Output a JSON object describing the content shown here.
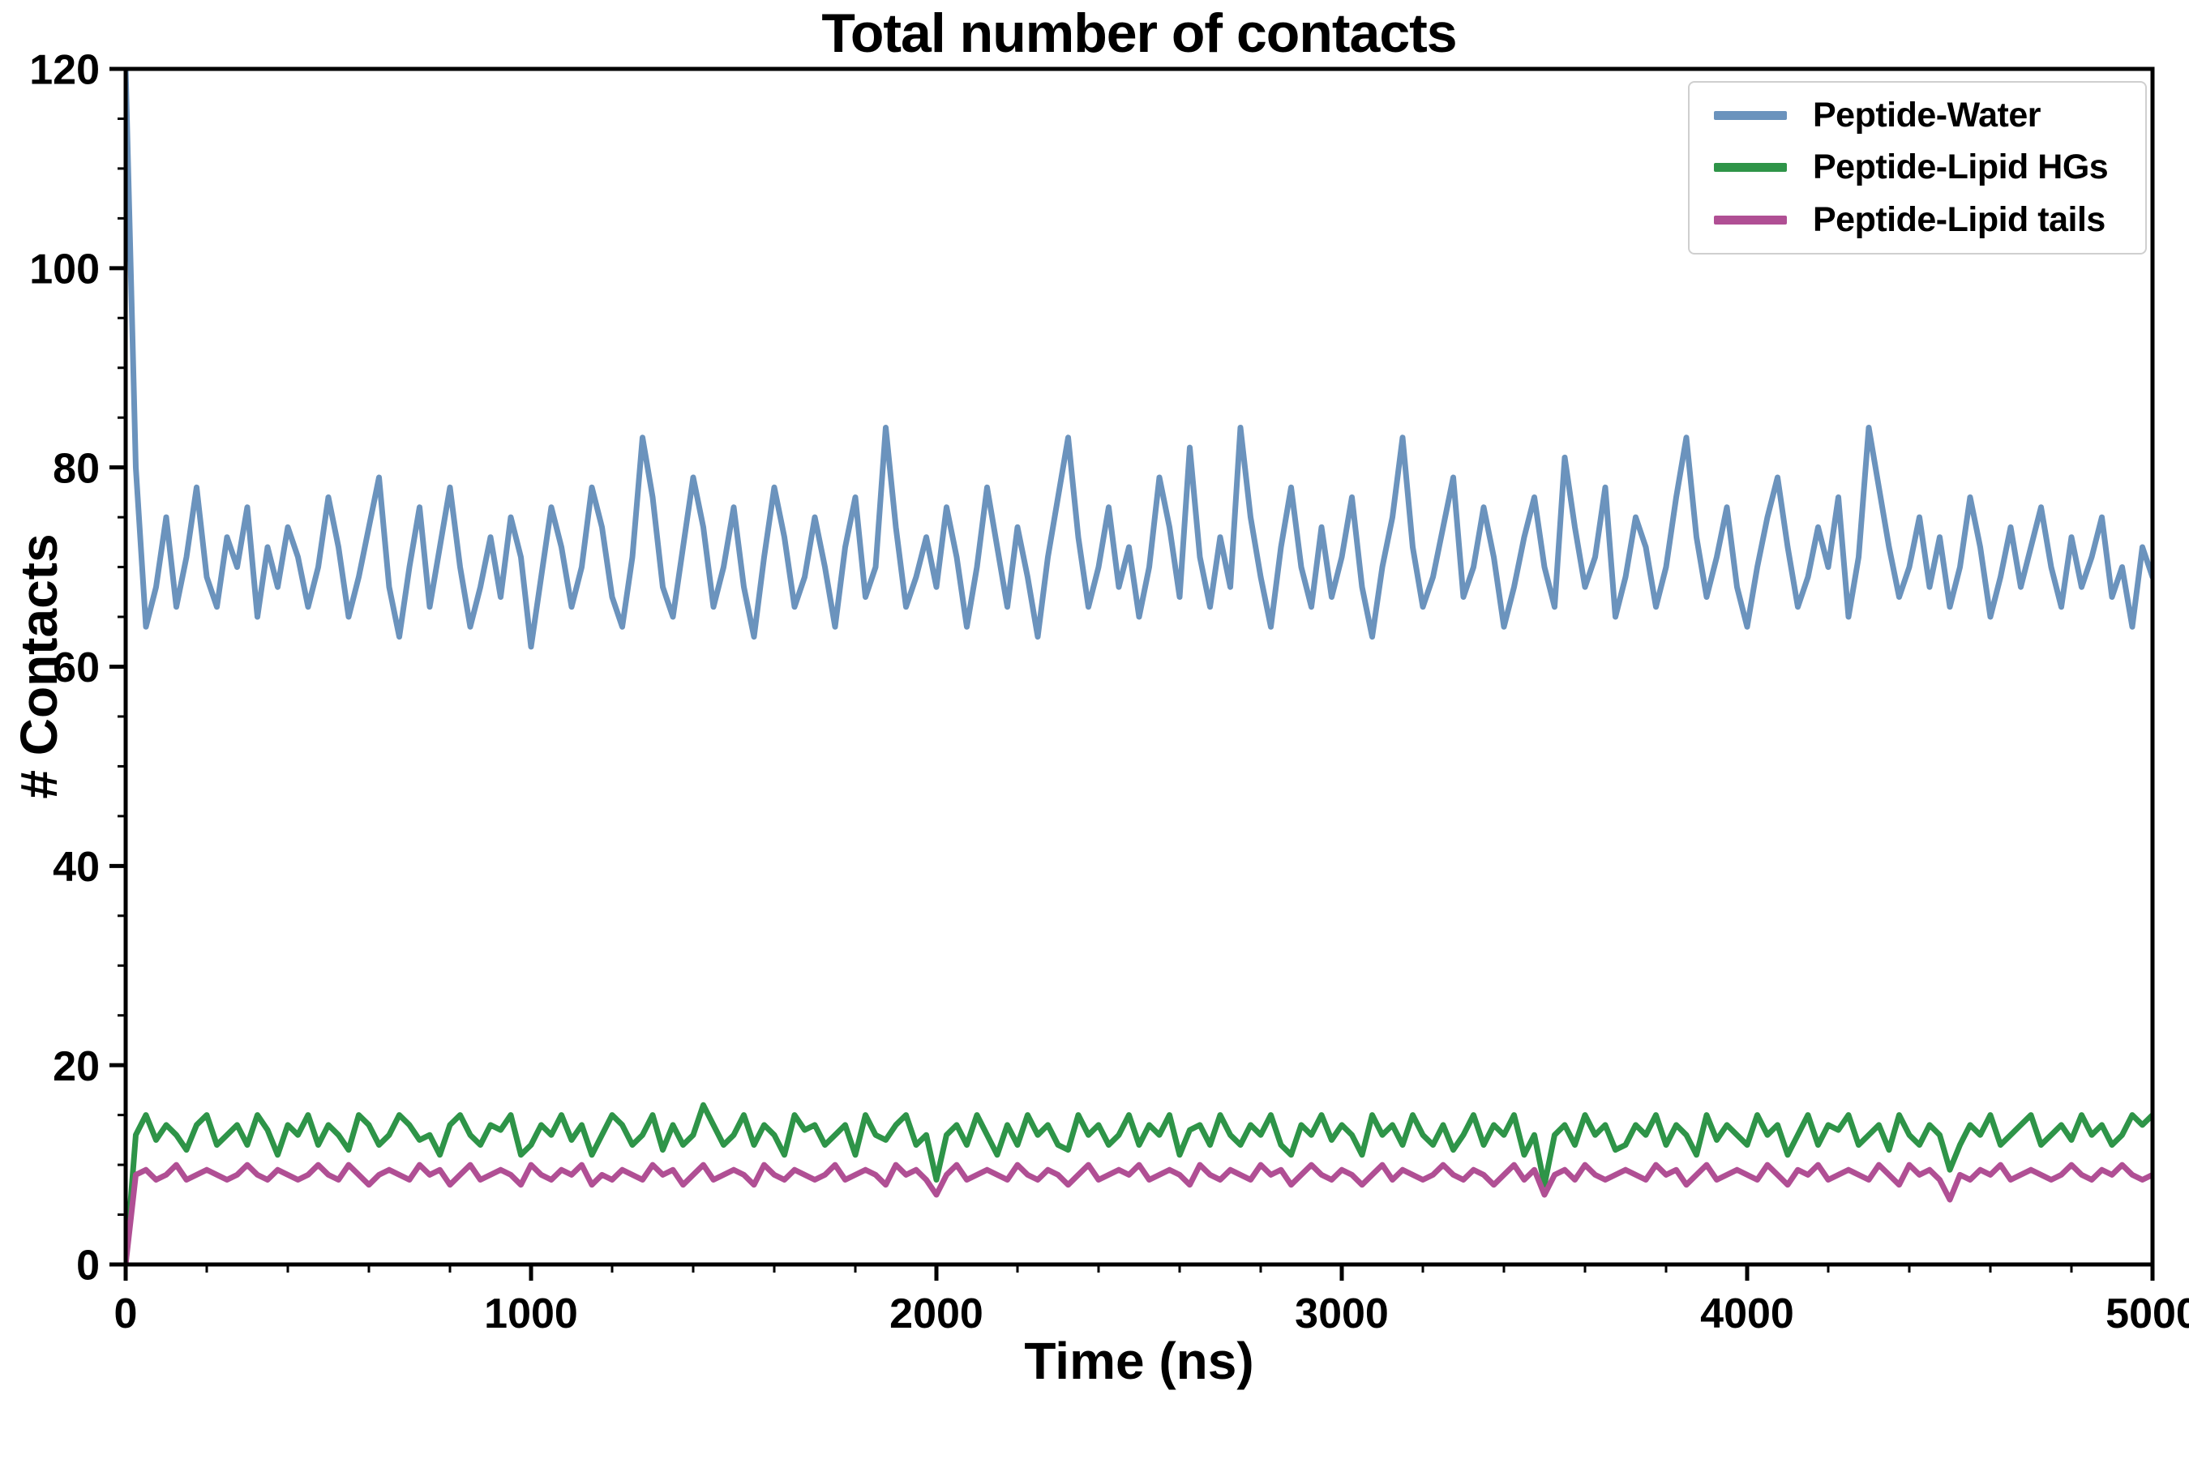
{
  "chart_data": {
    "type": "line",
    "title": "Total number of contacts",
    "xlabel": "Time (ns)",
    "ylabel": "# Contacts",
    "xlim": [
      0,
      5000
    ],
    "ylim": [
      0,
      120
    ],
    "xticks": [
      0,
      1000,
      2000,
      3000,
      4000,
      5000
    ],
    "yticks": [
      0,
      20,
      40,
      60,
      80,
      100,
      120
    ],
    "x_minor_step": 200,
    "y_minor_step": 5,
    "grid": false,
    "legend_position": "upper right",
    "x_start": 0,
    "x_step": 25,
    "series": [
      {
        "name": "Peptide-Water",
        "color": "#6b93bd",
        "values": [
          120,
          80,
          64,
          68,
          75,
          66,
          71,
          78,
          69,
          66,
          73,
          70,
          76,
          65,
          72,
          68,
          74,
          71,
          66,
          70,
          77,
          72,
          65,
          69,
          74,
          79,
          68,
          63,
          70,
          76,
          66,
          72,
          78,
          70,
          64,
          68,
          73,
          67,
          75,
          71,
          62,
          69,
          76,
          72,
          66,
          70,
          78,
          74,
          67,
          64,
          71,
          83,
          77,
          68,
          65,
          72,
          79,
          74,
          66,
          70,
          76,
          68,
          63,
          71,
          78,
          73,
          66,
          69,
          75,
          70,
          64,
          72,
          77,
          67,
          70,
          84,
          74,
          66,
          69,
          73,
          68,
          76,
          71,
          64,
          70,
          78,
          72,
          66,
          74,
          69,
          63,
          71,
          77,
          83,
          73,
          66,
          70,
          76,
          68,
          72,
          65,
          70,
          79,
          74,
          67,
          82,
          71,
          66,
          73,
          68,
          84,
          75,
          69,
          64,
          72,
          78,
          70,
          66,
          74,
          67,
          71,
          77,
          68,
          63,
          70,
          75,
          83,
          72,
          66,
          69,
          74,
          79,
          67,
          70,
          76,
          71,
          64,
          68,
          73,
          77,
          70,
          66,
          81,
          74,
          68,
          71,
          78,
          65,
          69,
          75,
          72,
          66,
          70,
          77,
          83,
          73,
          67,
          71,
          76,
          68,
          64,
          70,
          75,
          79,
          72,
          66,
          69,
          74,
          70,
          77,
          65,
          71,
          84,
          78,
          72,
          67,
          70,
          75,
          68,
          73,
          66,
          70,
          77,
          72,
          65,
          69,
          74,
          68,
          72,
          76,
          70,
          66,
          73,
          68,
          71,
          75,
          67,
          70,
          64,
          72,
          69
        ]
      },
      {
        "name": "Peptide-Lipid HGs",
        "color": "#2e9448",
        "values": [
          0,
          13,
          15,
          12.5,
          14,
          13,
          11.5,
          14,
          15,
          12,
          13,
          14,
          12,
          15,
          13.5,
          11,
          14,
          13,
          15,
          12,
          14,
          13,
          11.5,
          15,
          14,
          12,
          13,
          15,
          14,
          12.5,
          13,
          11,
          14,
          15,
          13,
          12,
          14,
          13.5,
          15,
          11,
          12,
          14,
          13,
          15,
          12.5,
          14,
          11,
          13,
          15,
          14,
          12,
          13,
          15,
          11.5,
          14,
          12,
          13,
          16,
          14,
          12,
          13,
          15,
          12,
          14,
          13,
          11,
          15,
          13.5,
          14,
          12,
          13,
          14,
          11,
          15,
          13,
          12.5,
          14,
          15,
          12,
          13,
          8.5,
          13,
          14,
          12,
          15,
          13,
          11,
          14,
          12,
          15,
          13,
          14,
          12,
          11.5,
          15,
          13,
          14,
          12,
          13,
          15,
          12,
          14,
          13,
          15,
          11,
          13.5,
          14,
          12,
          15,
          13,
          12,
          14,
          13,
          15,
          12,
          11,
          14,
          13,
          15,
          12.5,
          14,
          13,
          11,
          15,
          13,
          14,
          12,
          15,
          13,
          12,
          14,
          11.5,
          13,
          15,
          12,
          14,
          13,
          15,
          11,
          13,
          8,
          13,
          14,
          12,
          15,
          13,
          14,
          11.5,
          12,
          14,
          13,
          15,
          12,
          14,
          13,
          11,
          15,
          12.5,
          14,
          13,
          12,
          15,
          13,
          14,
          11,
          13,
          15,
          12,
          14,
          13.5,
          15,
          12,
          13,
          14,
          11.5,
          15,
          13,
          12,
          14,
          13,
          9.5,
          12,
          14,
          13,
          15,
          12,
          13,
          14,
          15,
          12,
          13,
          14,
          12.5,
          15,
          13,
          14,
          12,
          13,
          15,
          14,
          15
        ]
      },
      {
        "name": "Peptide-Lipid tails",
        "color": "#b04f94",
        "values": [
          0,
          9,
          9.5,
          8.5,
          9,
          10,
          8.5,
          9,
          9.5,
          9,
          8.5,
          9,
          10,
          9,
          8.5,
          9.5,
          9,
          8.5,
          9,
          10,
          9,
          8.5,
          10,
          9,
          8,
          9,
          9.5,
          9,
          8.5,
          10,
          9,
          9.5,
          8,
          9,
          10,
          8.5,
          9,
          9.5,
          9,
          8,
          10,
          9,
          8.5,
          9.5,
          9,
          10,
          8,
          9,
          8.5,
          9.5,
          9,
          8.5,
          10,
          9,
          9.5,
          8,
          9,
          10,
          8.5,
          9,
          9.5,
          9,
          8,
          10,
          9,
          8.5,
          9.5,
          9,
          8.5,
          9,
          10,
          8.5,
          9,
          9.5,
          9,
          8,
          10,
          9,
          9.5,
          8.5,
          7,
          9,
          10,
          8.5,
          9,
          9.5,
          9,
          8.5,
          10,
          9,
          8.5,
          9.5,
          9,
          8,
          9,
          10,
          8.5,
          9,
          9.5,
          9,
          10,
          8.5,
          9,
          9.5,
          9,
          8,
          10,
          9,
          8.5,
          9.5,
          9,
          8.5,
          10,
          9,
          9.5,
          8,
          9,
          10,
          9,
          8.5,
          9.5,
          9,
          8,
          9,
          10,
          8.5,
          9.5,
          9,
          8.5,
          9,
          10,
          9,
          8.5,
          9.5,
          9,
          8,
          9,
          10,
          8.5,
          9.5,
          7,
          9,
          9.5,
          8.5,
          10,
          9,
          8.5,
          9,
          9.5,
          9,
          8.5,
          10,
          9,
          9.5,
          8,
          9,
          10,
          8.5,
          9,
          9.5,
          9,
          8.5,
          10,
          9,
          8,
          9.5,
          9,
          10,
          8.5,
          9,
          9.5,
          9,
          8.5,
          10,
          9,
          8,
          10,
          9,
          9.5,
          8.5,
          6.5,
          9,
          8.5,
          9.5,
          9,
          10,
          8.5,
          9,
          9.5,
          9,
          8.5,
          9,
          10,
          9,
          8.5,
          9.5,
          9,
          10,
          9,
          8.5,
          9
        ]
      }
    ]
  }
}
